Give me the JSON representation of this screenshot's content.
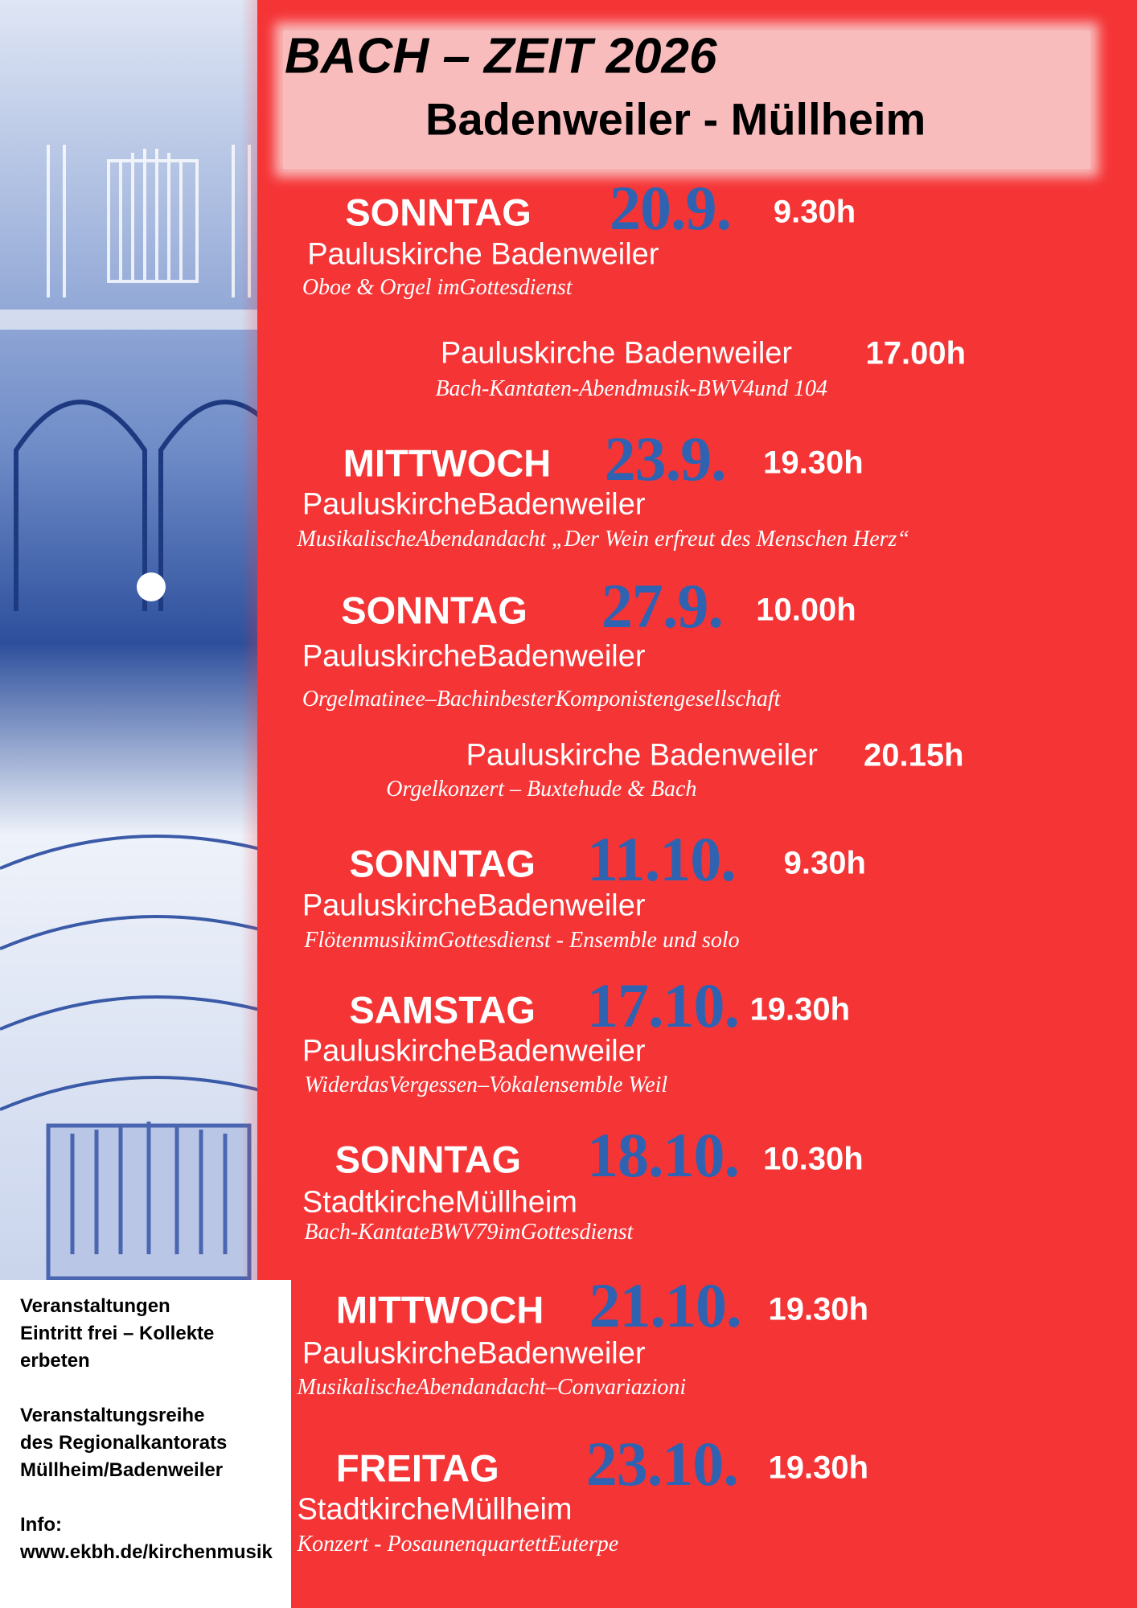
{
  "header": {
    "title": "BACH – ZEIT 2026",
    "subtitle": "Badenweiler - Müllheim"
  },
  "events": [
    {
      "day": "SONNTAG",
      "date": "20.9.",
      "time": "9.30h",
      "venue": "Pauluskirche Badenweiler",
      "description": "Oboe & Orgel imGottesdienst"
    },
    {
      "time": "17.00h",
      "venue": "Pauluskirche Badenweiler",
      "description": "Bach-Kantaten-Abendmusik-BWV4und 104"
    },
    {
      "day": "MITTWOCH",
      "date": "23.9.",
      "time": "19.30h",
      "venue": "PauluskircheBadenweiler",
      "description": "MusikalischeAbendandacht „Der Wein erfreut des Menschen Herz“"
    },
    {
      "day": "SONNTAG",
      "date": "27.9.",
      "time": "10.00h",
      "venue": "PauluskircheBadenweiler",
      "description": "Orgelmatinee–BachinbesterKomponistengesellschaft"
    },
    {
      "time": "20.15h",
      "venue": "Pauluskirche Badenweiler",
      "description": "Orgelkonzert – Buxtehude & Bach"
    },
    {
      "day": "SONNTAG",
      "date": "11.10.",
      "time": "9.30h",
      "venue": "PauluskircheBadenweiler",
      "description": "FlötenmusikimGottesdienst - Ensemble und solo"
    },
    {
      "day": "SAMSTAG",
      "date": "17.10.",
      "time": "19.30h",
      "venue": "PauluskircheBadenweiler",
      "description": "WiderdasVergessen–Vokalensemble Weil"
    },
    {
      "day": "SONNTAG",
      "date": "18.10.",
      "time": "10.30h",
      "venue": "StadtkircheMüllheim",
      "description": "Bach-KantateBWV79imGottesdienst"
    },
    {
      "day": "MITTWOCH",
      "date": "21.10.",
      "time": "19.30h",
      "venue": "PauluskircheBadenweiler",
      "description": "MusikalischeAbendandacht–Convariazioni"
    },
    {
      "day": "FREITAG",
      "date": "23.10.",
      "time": "19.30h",
      "venue": "StadtkircheMüllheim",
      "description": "Konzert - PosaunenquartettEuterpe"
    }
  ],
  "sidebar": {
    "blocks": [
      [
        "Veranstaltungen",
        "Eintritt frei – Kollekte",
        "erbeten"
      ],
      [
        "Veranstaltungsreihe",
        "des Regionalkantorats",
        "Müllheim/Badenweiler"
      ],
      [
        "Info:",
        "www.ekbh.de/kirchenmusik"
      ]
    ]
  }
}
